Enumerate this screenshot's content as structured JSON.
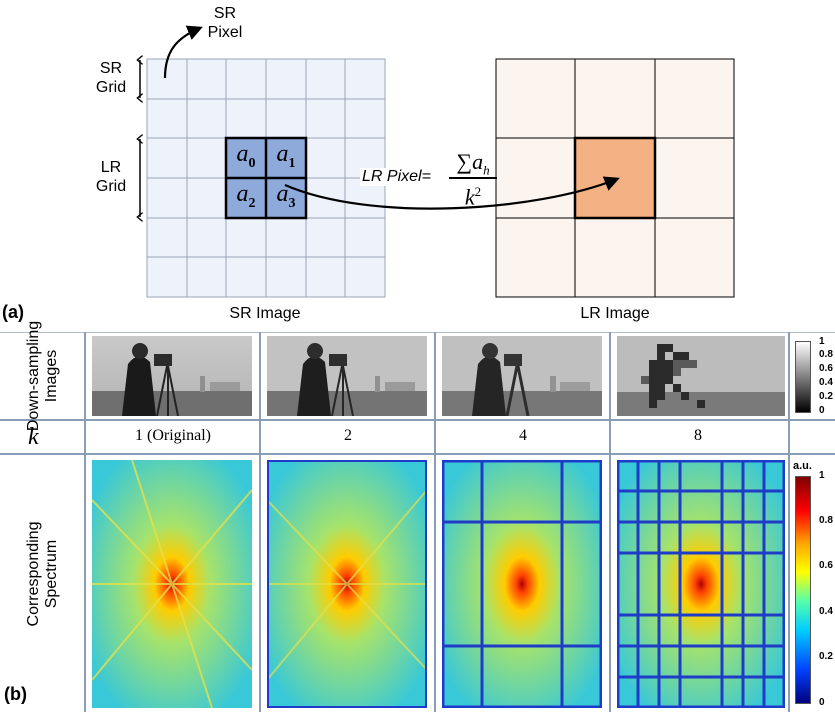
{
  "panel_a": {
    "tag": "(a)",
    "sr_pixel_label": "SR\nPixel",
    "sr_grid_label": "SR\nGrid",
    "lr_grid_label": "LR\nGrid",
    "formula_prefix": "LR Pixel=",
    "formula_numerator": "∑a",
    "formula_numerator_sub": "h",
    "formula_denominator": "k",
    "formula_denominator_sup": "2",
    "cells": [
      {
        "base": "a",
        "sub": "0"
      },
      {
        "base": "a",
        "sub": "1"
      },
      {
        "base": "a",
        "sub": "2"
      },
      {
        "base": "a",
        "sub": "3"
      }
    ],
    "sr_caption": "SR Image",
    "lr_caption": "LR Image",
    "colors": {
      "sr_fill": "#edf2fb",
      "highlight": "#8eaadb",
      "lr_fill": "#fcf5ef",
      "lr_highlight": "#f4b183"
    }
  },
  "panel_b": {
    "tag": "(b)",
    "row1_label": "Down-sampling\nImages",
    "row2_symbol": "k",
    "row3_label": "Corresponding\nSpectrum",
    "k_values": [
      "1  (Original)",
      "2",
      "4",
      "8"
    ],
    "gray_colorbar_ticks": [
      "1",
      "0.8",
      "0.6",
      "0.4",
      "0.2",
      "0"
    ],
    "spectrum_colorbar_title": "a.u.",
    "spectrum_colorbar_ticks": [
      "1",
      "0.8",
      "0.6",
      "0.4",
      "0.2",
      "0"
    ]
  }
}
